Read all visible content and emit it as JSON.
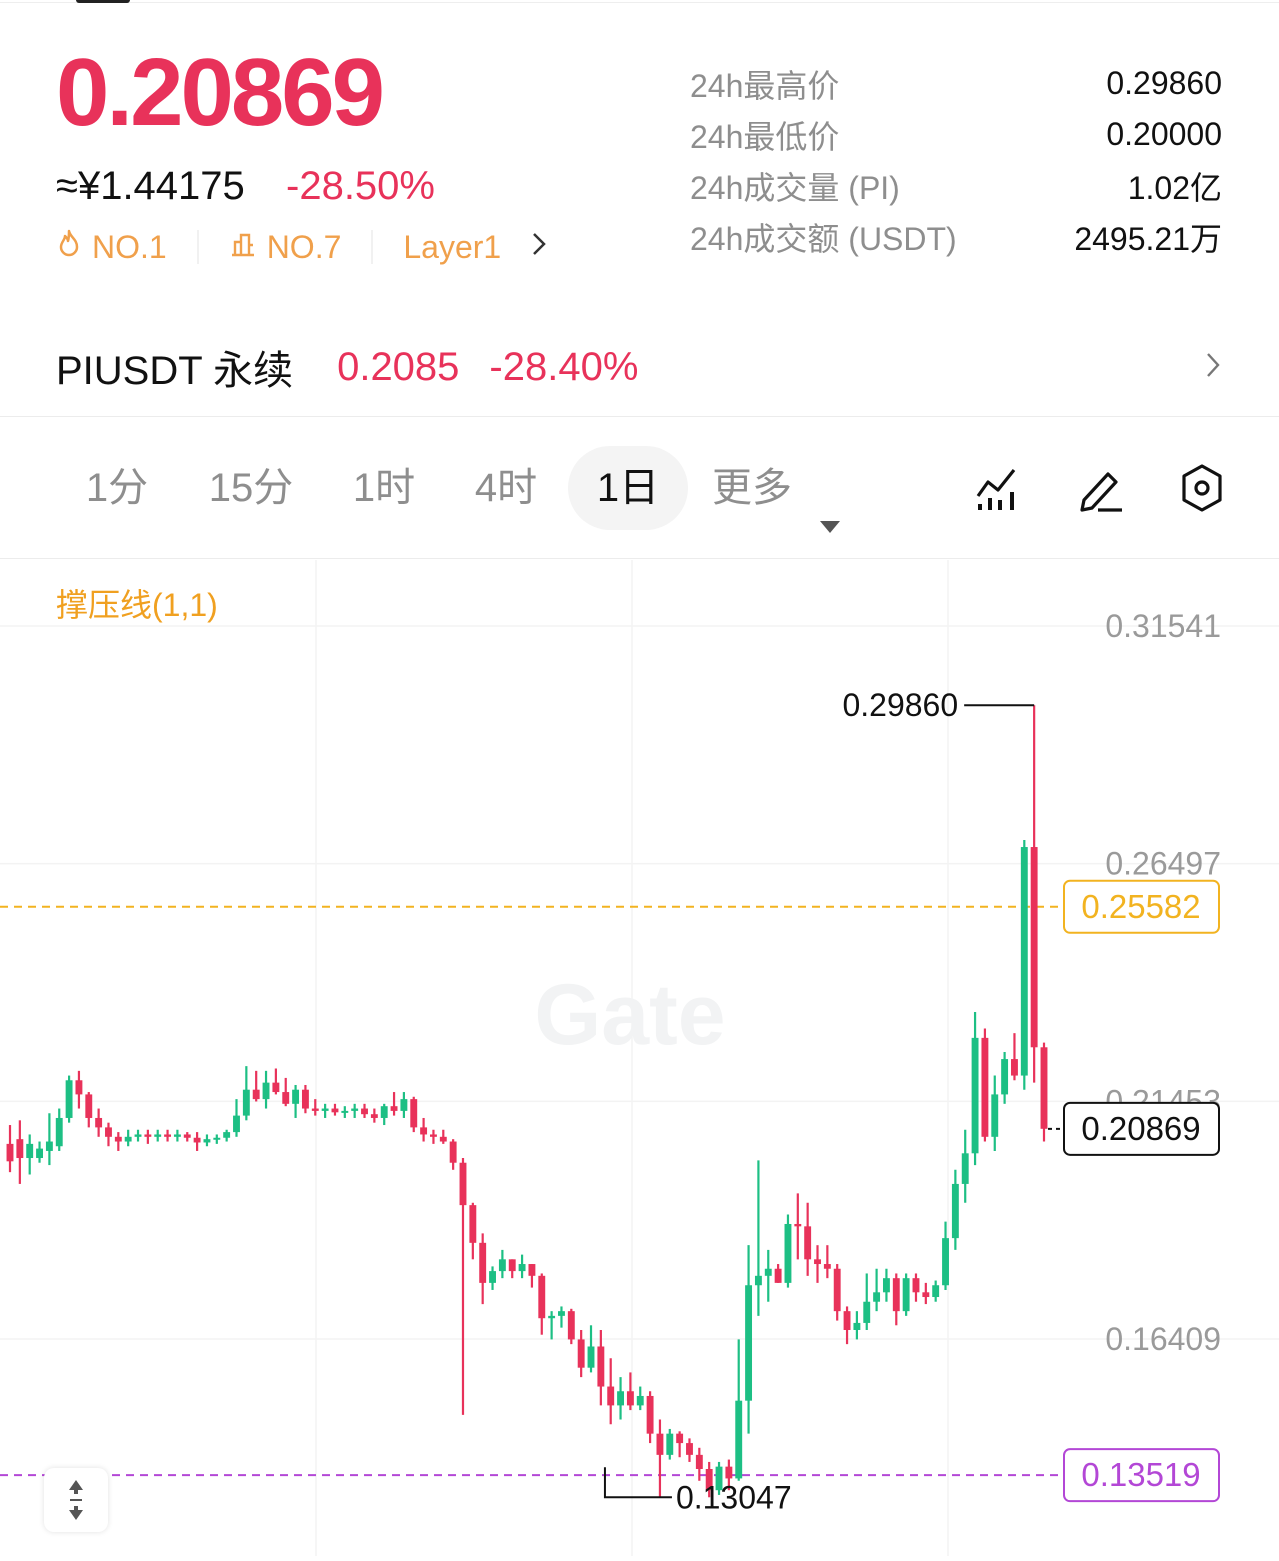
{
  "header": {
    "last_price": "0.20869",
    "cny_price": "≈¥1.44175",
    "change_pct": "-28.50%",
    "tags": [
      {
        "label": "NO.1",
        "icon": "fire-icon"
      },
      {
        "label": "NO.7",
        "icon": "chart-cube-icon"
      },
      {
        "label": "Layer1",
        "icon": "chevron-right-icon"
      }
    ],
    "stats": [
      {
        "label": "24h最高价",
        "value": "0.29860"
      },
      {
        "label": "24h最低价",
        "value": "0.20000"
      },
      {
        "label": "24h成交量 (PI)",
        "value": "1.02亿"
      },
      {
        "label": "24h成交额 (USDT)",
        "value": "2495.21万"
      }
    ]
  },
  "perpetual": {
    "name": "PIUSDT 永续",
    "price": "0.2085",
    "change": "-28.40%"
  },
  "timeframes": [
    {
      "label": "1分",
      "active": false
    },
    {
      "label": "15分",
      "active": false
    },
    {
      "label": "1时",
      "active": false
    },
    {
      "label": "4时",
      "active": false
    },
    {
      "label": "1日",
      "active": true
    },
    {
      "label": "更多",
      "active": false
    }
  ],
  "toolbar_icons": [
    "indicator-icon",
    "draw-pencil-icon",
    "settings-hexagon-icon"
  ],
  "indicator_label": "撑压线(1,1)",
  "watermark": "Gate",
  "colors": {
    "up": "#1dbf84",
    "down": "#e8325a",
    "resistance": "#f2b320",
    "support": "#b347d6",
    "accent_orange": "#f0a04b"
  },
  "chart_data": {
    "type": "candlestick",
    "y_axis_ticks": [
      "0.31541",
      "0.26497",
      "0.21453",
      "0.16409"
    ],
    "ylim": [
      0.1,
      0.33
    ],
    "last_price_label": "0.20869",
    "resistance_label": "0.25582",
    "support_label": "0.13519",
    "high_marker": "0.29860",
    "low_marker": "0.13047",
    "candles": [
      [
        0.2055,
        0.2095,
        0.1995,
        0.2018
      ],
      [
        0.2065,
        0.2105,
        0.197,
        0.2025
      ],
      [
        0.2025,
        0.2075,
        0.199,
        0.2055
      ],
      [
        0.2025,
        0.206,
        0.2015,
        0.2045
      ],
      [
        0.204,
        0.212,
        0.201,
        0.206
      ],
      [
        0.205,
        0.213,
        0.204,
        0.211
      ],
      [
        0.211,
        0.22,
        0.21,
        0.219
      ],
      [
        0.219,
        0.221,
        0.213,
        0.216
      ],
      [
        0.216,
        0.2165,
        0.209,
        0.211
      ],
      [
        0.211,
        0.213,
        0.207,
        0.209
      ],
      [
        0.209,
        0.21,
        0.205,
        0.207
      ],
      [
        0.207,
        0.208,
        0.204,
        0.206
      ],
      [
        0.206,
        0.2085,
        0.205,
        0.207
      ],
      [
        0.207,
        0.2085,
        0.206,
        0.2075
      ],
      [
        0.2075,
        0.2085,
        0.2055,
        0.207
      ],
      [
        0.207,
        0.2085,
        0.206,
        0.2075
      ],
      [
        0.2075,
        0.2085,
        0.206,
        0.207
      ],
      [
        0.207,
        0.2085,
        0.206,
        0.2075
      ],
      [
        0.2075,
        0.208,
        0.206,
        0.2068
      ],
      [
        0.2068,
        0.208,
        0.204,
        0.2058
      ],
      [
        0.2058,
        0.2075,
        0.205,
        0.2065
      ],
      [
        0.2065,
        0.2075,
        0.2055,
        0.2068
      ],
      [
        0.2068,
        0.2085,
        0.206,
        0.208
      ],
      [
        0.208,
        0.215,
        0.207,
        0.2115
      ],
      [
        0.2115,
        0.222,
        0.2105,
        0.217
      ],
      [
        0.217,
        0.221,
        0.2145,
        0.215
      ],
      [
        0.215,
        0.221,
        0.213,
        0.2185
      ],
      [
        0.2185,
        0.2215,
        0.216,
        0.2165
      ],
      [
        0.2165,
        0.2195,
        0.2135,
        0.214
      ],
      [
        0.214,
        0.218,
        0.211,
        0.217
      ],
      [
        0.217,
        0.218,
        0.212,
        0.213
      ],
      [
        0.213,
        0.215,
        0.2115,
        0.2125
      ],
      [
        0.2125,
        0.214,
        0.211,
        0.213
      ],
      [
        0.213,
        0.214,
        0.2115,
        0.2122
      ],
      [
        0.2122,
        0.2135,
        0.211,
        0.2125
      ],
      [
        0.2125,
        0.214,
        0.211,
        0.213
      ],
      [
        0.213,
        0.214,
        0.211,
        0.2118
      ],
      [
        0.2118,
        0.213,
        0.21,
        0.211
      ],
      [
        0.211,
        0.214,
        0.2095,
        0.2135
      ],
      [
        0.2135,
        0.2165,
        0.2115,
        0.2125
      ],
      [
        0.2125,
        0.2165,
        0.211,
        0.215
      ],
      [
        0.215,
        0.2155,
        0.208,
        0.209
      ],
      [
        0.209,
        0.211,
        0.206,
        0.2075
      ],
      [
        0.2075,
        0.2085,
        0.2055,
        0.207
      ],
      [
        0.207,
        0.2085,
        0.2055,
        0.206
      ],
      [
        0.206,
        0.2065,
        0.2,
        0.2015
      ],
      [
        0.2015,
        0.2025,
        0.148,
        0.1925
      ],
      [
        0.1925,
        0.193,
        0.181,
        0.1845
      ],
      [
        0.1845,
        0.1865,
        0.1715,
        0.176
      ],
      [
        0.176,
        0.1795,
        0.1745,
        0.1785
      ],
      [
        0.1785,
        0.183,
        0.177,
        0.181
      ],
      [
        0.181,
        0.181,
        0.177,
        0.1785
      ],
      [
        0.1785,
        0.182,
        0.177,
        0.18
      ],
      [
        0.18,
        0.18,
        0.175,
        0.1775
      ],
      [
        0.1775,
        0.178,
        0.165,
        0.1685
      ],
      [
        0.1685,
        0.17,
        0.164,
        0.169
      ],
      [
        0.169,
        0.171,
        0.1665,
        0.17
      ],
      [
        0.17,
        0.1705,
        0.163,
        0.164
      ],
      [
        0.164,
        0.166,
        0.156,
        0.158
      ],
      [
        0.158,
        0.167,
        0.157,
        0.1625
      ],
      [
        0.1625,
        0.166,
        0.15,
        0.154
      ],
      [
        0.154,
        0.16,
        0.146,
        0.15
      ],
      [
        0.15,
        0.156,
        0.147,
        0.153
      ],
      [
        0.153,
        0.157,
        0.149,
        0.15
      ],
      [
        0.15,
        0.154,
        0.149,
        0.152
      ],
      [
        0.152,
        0.153,
        0.142,
        0.144
      ],
      [
        0.144,
        0.147,
        0.1305,
        0.1395
      ],
      [
        0.1395,
        0.145,
        0.1385,
        0.144
      ],
      [
        0.144,
        0.1445,
        0.139,
        0.142
      ],
      [
        0.142,
        0.143,
        0.138,
        0.1395
      ],
      [
        0.1395,
        0.141,
        0.134,
        0.1365
      ],
      [
        0.1365,
        0.138,
        0.1305,
        0.132
      ],
      [
        0.132,
        0.138,
        0.131,
        0.137
      ],
      [
        0.137,
        0.1385,
        0.132,
        0.1345
      ],
      [
        0.1345,
        0.164,
        0.134,
        0.151
      ],
      [
        0.151,
        0.184,
        0.144,
        0.1755
      ],
      [
        0.1755,
        0.202,
        0.169,
        0.1775
      ],
      [
        0.1775,
        0.183,
        0.172,
        0.179
      ],
      [
        0.179,
        0.18,
        0.176,
        0.176
      ],
      [
        0.176,
        0.1905,
        0.175,
        0.1885
      ],
      [
        0.1885,
        0.195,
        0.181,
        0.188
      ],
      [
        0.188,
        0.193,
        0.1775,
        0.181
      ],
      [
        0.181,
        0.184,
        0.176,
        0.18
      ],
      [
        0.18,
        0.184,
        0.177,
        0.179
      ],
      [
        0.179,
        0.18,
        0.168,
        0.17
      ],
      [
        0.17,
        0.171,
        0.163,
        0.166
      ],
      [
        0.166,
        0.17,
        0.164,
        0.1675
      ],
      [
        0.1675,
        0.178,
        0.166,
        0.172
      ],
      [
        0.172,
        0.179,
        0.17,
        0.174
      ],
      [
        0.174,
        0.179,
        0.172,
        0.177
      ],
      [
        0.177,
        0.178,
        0.167,
        0.17
      ],
      [
        0.17,
        0.178,
        0.169,
        0.177
      ],
      [
        0.177,
        0.178,
        0.172,
        0.174
      ],
      [
        0.174,
        0.176,
        0.1715,
        0.173
      ],
      [
        0.173,
        0.1765,
        0.172,
        0.1755
      ],
      [
        0.1755,
        0.189,
        0.1745,
        0.1855
      ],
      [
        0.1855,
        0.2,
        0.183,
        0.197
      ],
      [
        0.197,
        0.2085,
        0.193,
        0.2035
      ],
      [
        0.2035,
        0.2335,
        0.201,
        0.228
      ],
      [
        0.228,
        0.23,
        0.206,
        0.207
      ],
      [
        0.207,
        0.22,
        0.204,
        0.216
      ],
      [
        0.216,
        0.225,
        0.214,
        0.2235
      ],
      [
        0.2235,
        0.229,
        0.219,
        0.22
      ],
      [
        0.22,
        0.27,
        0.217,
        0.2685
      ],
      [
        0.2685,
        0.2986,
        0.2185,
        0.226
      ],
      [
        0.226,
        0.227,
        0.206,
        0.2087
      ]
    ]
  }
}
